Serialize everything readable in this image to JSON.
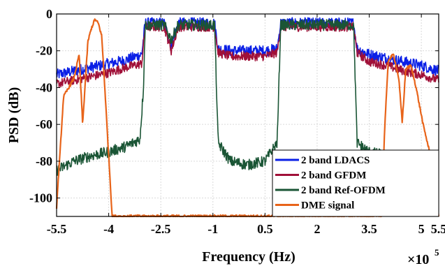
{
  "chart_data": {
    "type": "line",
    "xlabel": "Frequency (Hz)",
    "ylabel": "PSD (dB)",
    "x_multiplier_base": "×10",
    "x_multiplier_exp": "5",
    "xlim": [
      -5.5,
      5.5
    ],
    "ylim": [
      -110,
      0
    ],
    "x_ticks": [
      -5.5,
      -4,
      -2.5,
      -1,
      0.5,
      2,
      3.5,
      5,
      5.5
    ],
    "x_tick_labels": [
      "-5.5",
      "-4",
      "-2.5",
      "-1",
      "0.5",
      "2",
      "3.5",
      "5",
      "5.5"
    ],
    "y_ticks": [
      0,
      -20,
      -40,
      -60,
      -80,
      -100
    ],
    "y_tick_labels": [
      "0",
      "-20",
      "-40",
      "-60",
      "-80",
      "-100"
    ],
    "grid": true,
    "legend_position": "bottom-right",
    "series": [
      {
        "name": "2 band LDACS",
        "color": "#0a1fe6",
        "x": [
          -5.5,
          -5,
          -4.5,
          -4,
          -3.5,
          -3.05,
          -2.95,
          -2.7,
          -2.4,
          -2.2,
          -2.0,
          -1.6,
          -1.2,
          -0.95,
          -0.85,
          -0.5,
          0,
          0.5,
          0.85,
          0.95,
          1.2,
          1.6,
          2.0,
          2.4,
          2.8,
          3.05,
          3.15,
          3.5,
          4,
          4.5,
          5,
          5.5
        ],
        "y": [
          -33,
          -31,
          -29,
          -27,
          -25,
          -22,
          -5,
          -5,
          -5,
          -18,
          -5,
          -5,
          -5,
          -5,
          -19,
          -20,
          -20,
          -20,
          -19,
          -5,
          -5,
          -5,
          -5,
          -5,
          -5,
          -5,
          -19,
          -22,
          -24,
          -26,
          -28,
          -31
        ],
        "noise": 3
      },
      {
        "name": "2 band GFDM",
        "color": "#a01038",
        "x": [
          -5.5,
          -5,
          -4.5,
          -4,
          -3.5,
          -3.05,
          -2.95,
          -2.7,
          -2.4,
          -2.2,
          -2.0,
          -1.6,
          -1.2,
          -0.95,
          -0.85,
          -0.5,
          0,
          0.5,
          0.85,
          0.95,
          1.2,
          1.6,
          2.0,
          2.4,
          2.8,
          3.05,
          3.15,
          3.5,
          4,
          4.5,
          5,
          5.5
        ],
        "y": [
          -38,
          -36,
          -34,
          -32,
          -29,
          -27,
          -7,
          -7,
          -7,
          -20,
          -7,
          -7,
          -7,
          -7,
          -21,
          -23,
          -23,
          -23,
          -21,
          -7,
          -7,
          -7,
          -7,
          -7,
          -7,
          -7,
          -21,
          -26,
          -28,
          -31,
          -33,
          -36
        ],
        "noise": 2.5
      },
      {
        "name": "2 band Ref-OFDM",
        "color": "#1a5535",
        "x": [
          -5.5,
          -5,
          -4.5,
          -4,
          -3.5,
          -3.1,
          -3.0,
          -2.95,
          -2.7,
          -2.4,
          -2.2,
          -2.0,
          -1.6,
          -1.2,
          -0.95,
          -0.85,
          -0.5,
          0,
          0.5,
          0.85,
          0.95,
          1.2,
          1.6,
          2.0,
          2.4,
          2.8,
          3.05,
          3.15,
          3.5,
          4,
          4.5,
          5,
          5.5
        ],
        "y": [
          -85,
          -80,
          -77,
          -75,
          -72,
          -68,
          -40,
          -6,
          -6,
          -6,
          -14,
          -6,
          -6,
          -6,
          -6,
          -70,
          -80,
          -82,
          -80,
          -70,
          -6,
          -6,
          -6,
          -6,
          -6,
          -6,
          -6,
          -70,
          -75,
          -77,
          -77,
          -79,
          -82
        ],
        "noise": 3
      },
      {
        "name": "DME signal",
        "color": "#e8641a",
        "x": [
          -5.5,
          -5.3,
          -5.0,
          -4.85,
          -4.75,
          -4.6,
          -4.5,
          -4.4,
          -4.3,
          -4.2,
          -4.1,
          -3.9,
          3.85,
          3.95,
          4.05,
          4.2,
          4.35,
          4.45,
          4.55,
          4.7,
          4.85,
          5.05,
          5.3,
          5.5
        ],
        "y": [
          -105,
          -45,
          -35,
          -22,
          -60,
          -15,
          -8,
          -3,
          -5,
          -12,
          -44,
          -110,
          -110,
          -60,
          -25,
          -22,
          -35,
          -59,
          -30,
          -28,
          -40,
          -60,
          -80,
          -110
        ],
        "noise": 0.8
      }
    ]
  }
}
